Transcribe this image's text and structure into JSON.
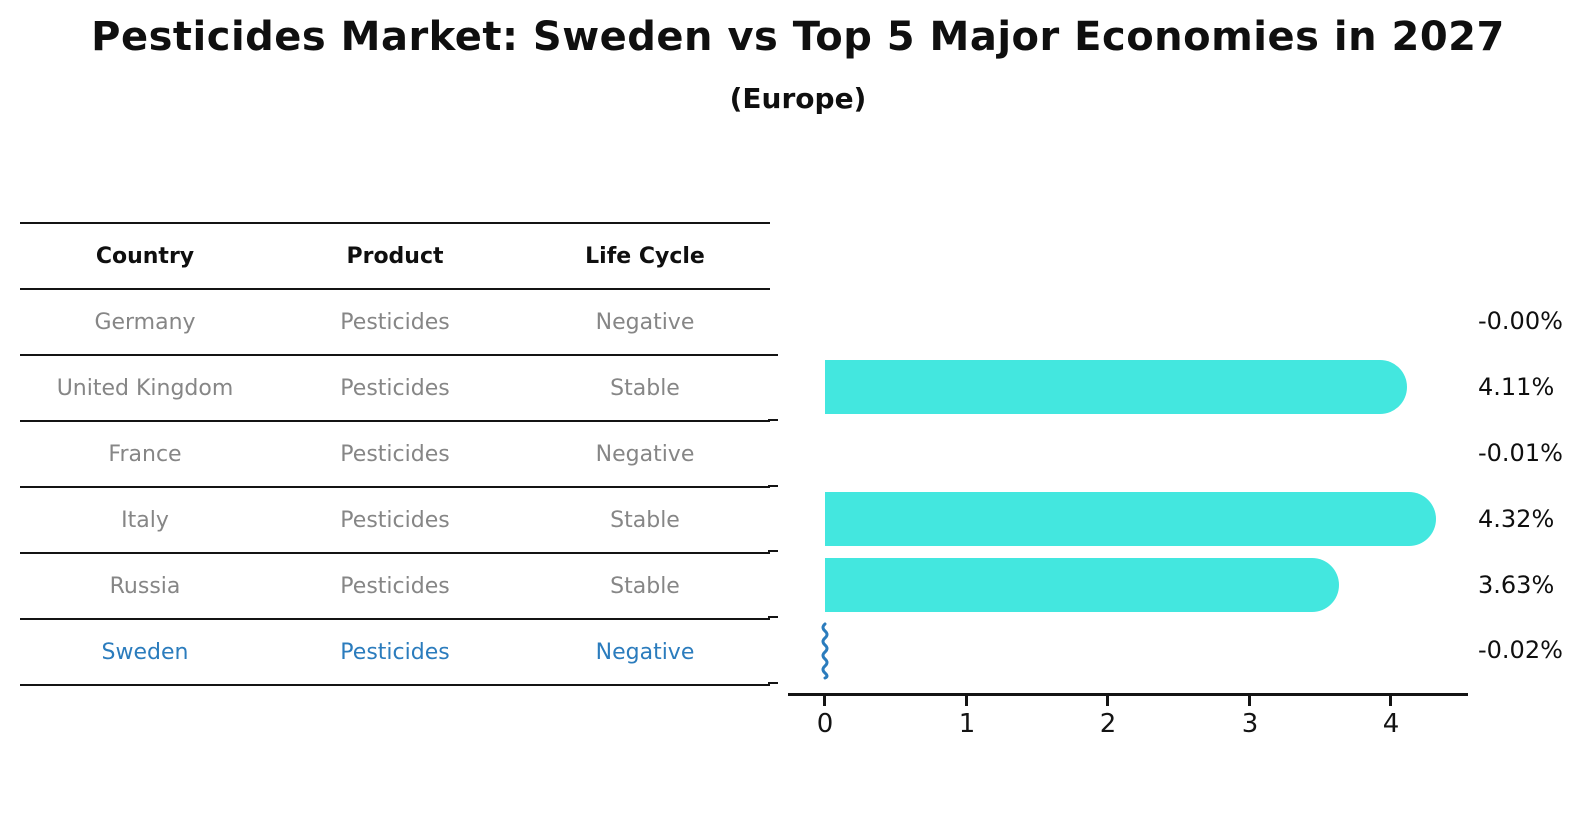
{
  "title": "Pesticides Market: Sweden vs Top 5 Major Economies in 2027",
  "subtitle": "(Europe)",
  "table": {
    "headers": [
      "Country",
      "Product",
      "Life Cycle"
    ],
    "rows": [
      {
        "country": "Germany",
        "product": "Pesticides",
        "life_cycle": "Negative",
        "highlighted": false
      },
      {
        "country": "United Kingdom",
        "product": "Pesticides",
        "life_cycle": "Stable",
        "highlighted": false
      },
      {
        "country": "France",
        "product": "Pesticides",
        "life_cycle": "Negative",
        "highlighted": false
      },
      {
        "country": "Italy",
        "product": "Pesticides",
        "life_cycle": "Stable",
        "highlighted": false
      },
      {
        "country": "Russia",
        "product": "Pesticides",
        "life_cycle": "Stable",
        "highlighted": false
      },
      {
        "country": "Sweden",
        "product": "Pesticides",
        "life_cycle": "Negative",
        "highlighted": true
      }
    ]
  },
  "chart_data": {
    "type": "bar",
    "orientation": "horizontal",
    "title": "Pesticides Market: Sweden vs Top 5 Major Economies in 2027 (Europe)",
    "categories": [
      "Germany",
      "United Kingdom",
      "France",
      "Italy",
      "Russia",
      "Sweden"
    ],
    "values": [
      -0.0,
      4.11,
      -0.01,
      4.32,
      3.63,
      -0.02
    ],
    "value_labels": [
      "-0.00%",
      "4.11%",
      "-0.01%",
      "4.32%",
      "3.63%",
      "-0.02%"
    ],
    "x_ticks": [
      "0",
      "1",
      "2",
      "3",
      "4"
    ],
    "xlim": [
      -0.26,
      4.55
    ],
    "grid": false,
    "legend": "none",
    "bar_color": "#43e7df",
    "highlight_color": "#2b7cbd",
    "highlight_category": "Sweden",
    "highlight_marker": "blue vertical squiggle at zero"
  }
}
